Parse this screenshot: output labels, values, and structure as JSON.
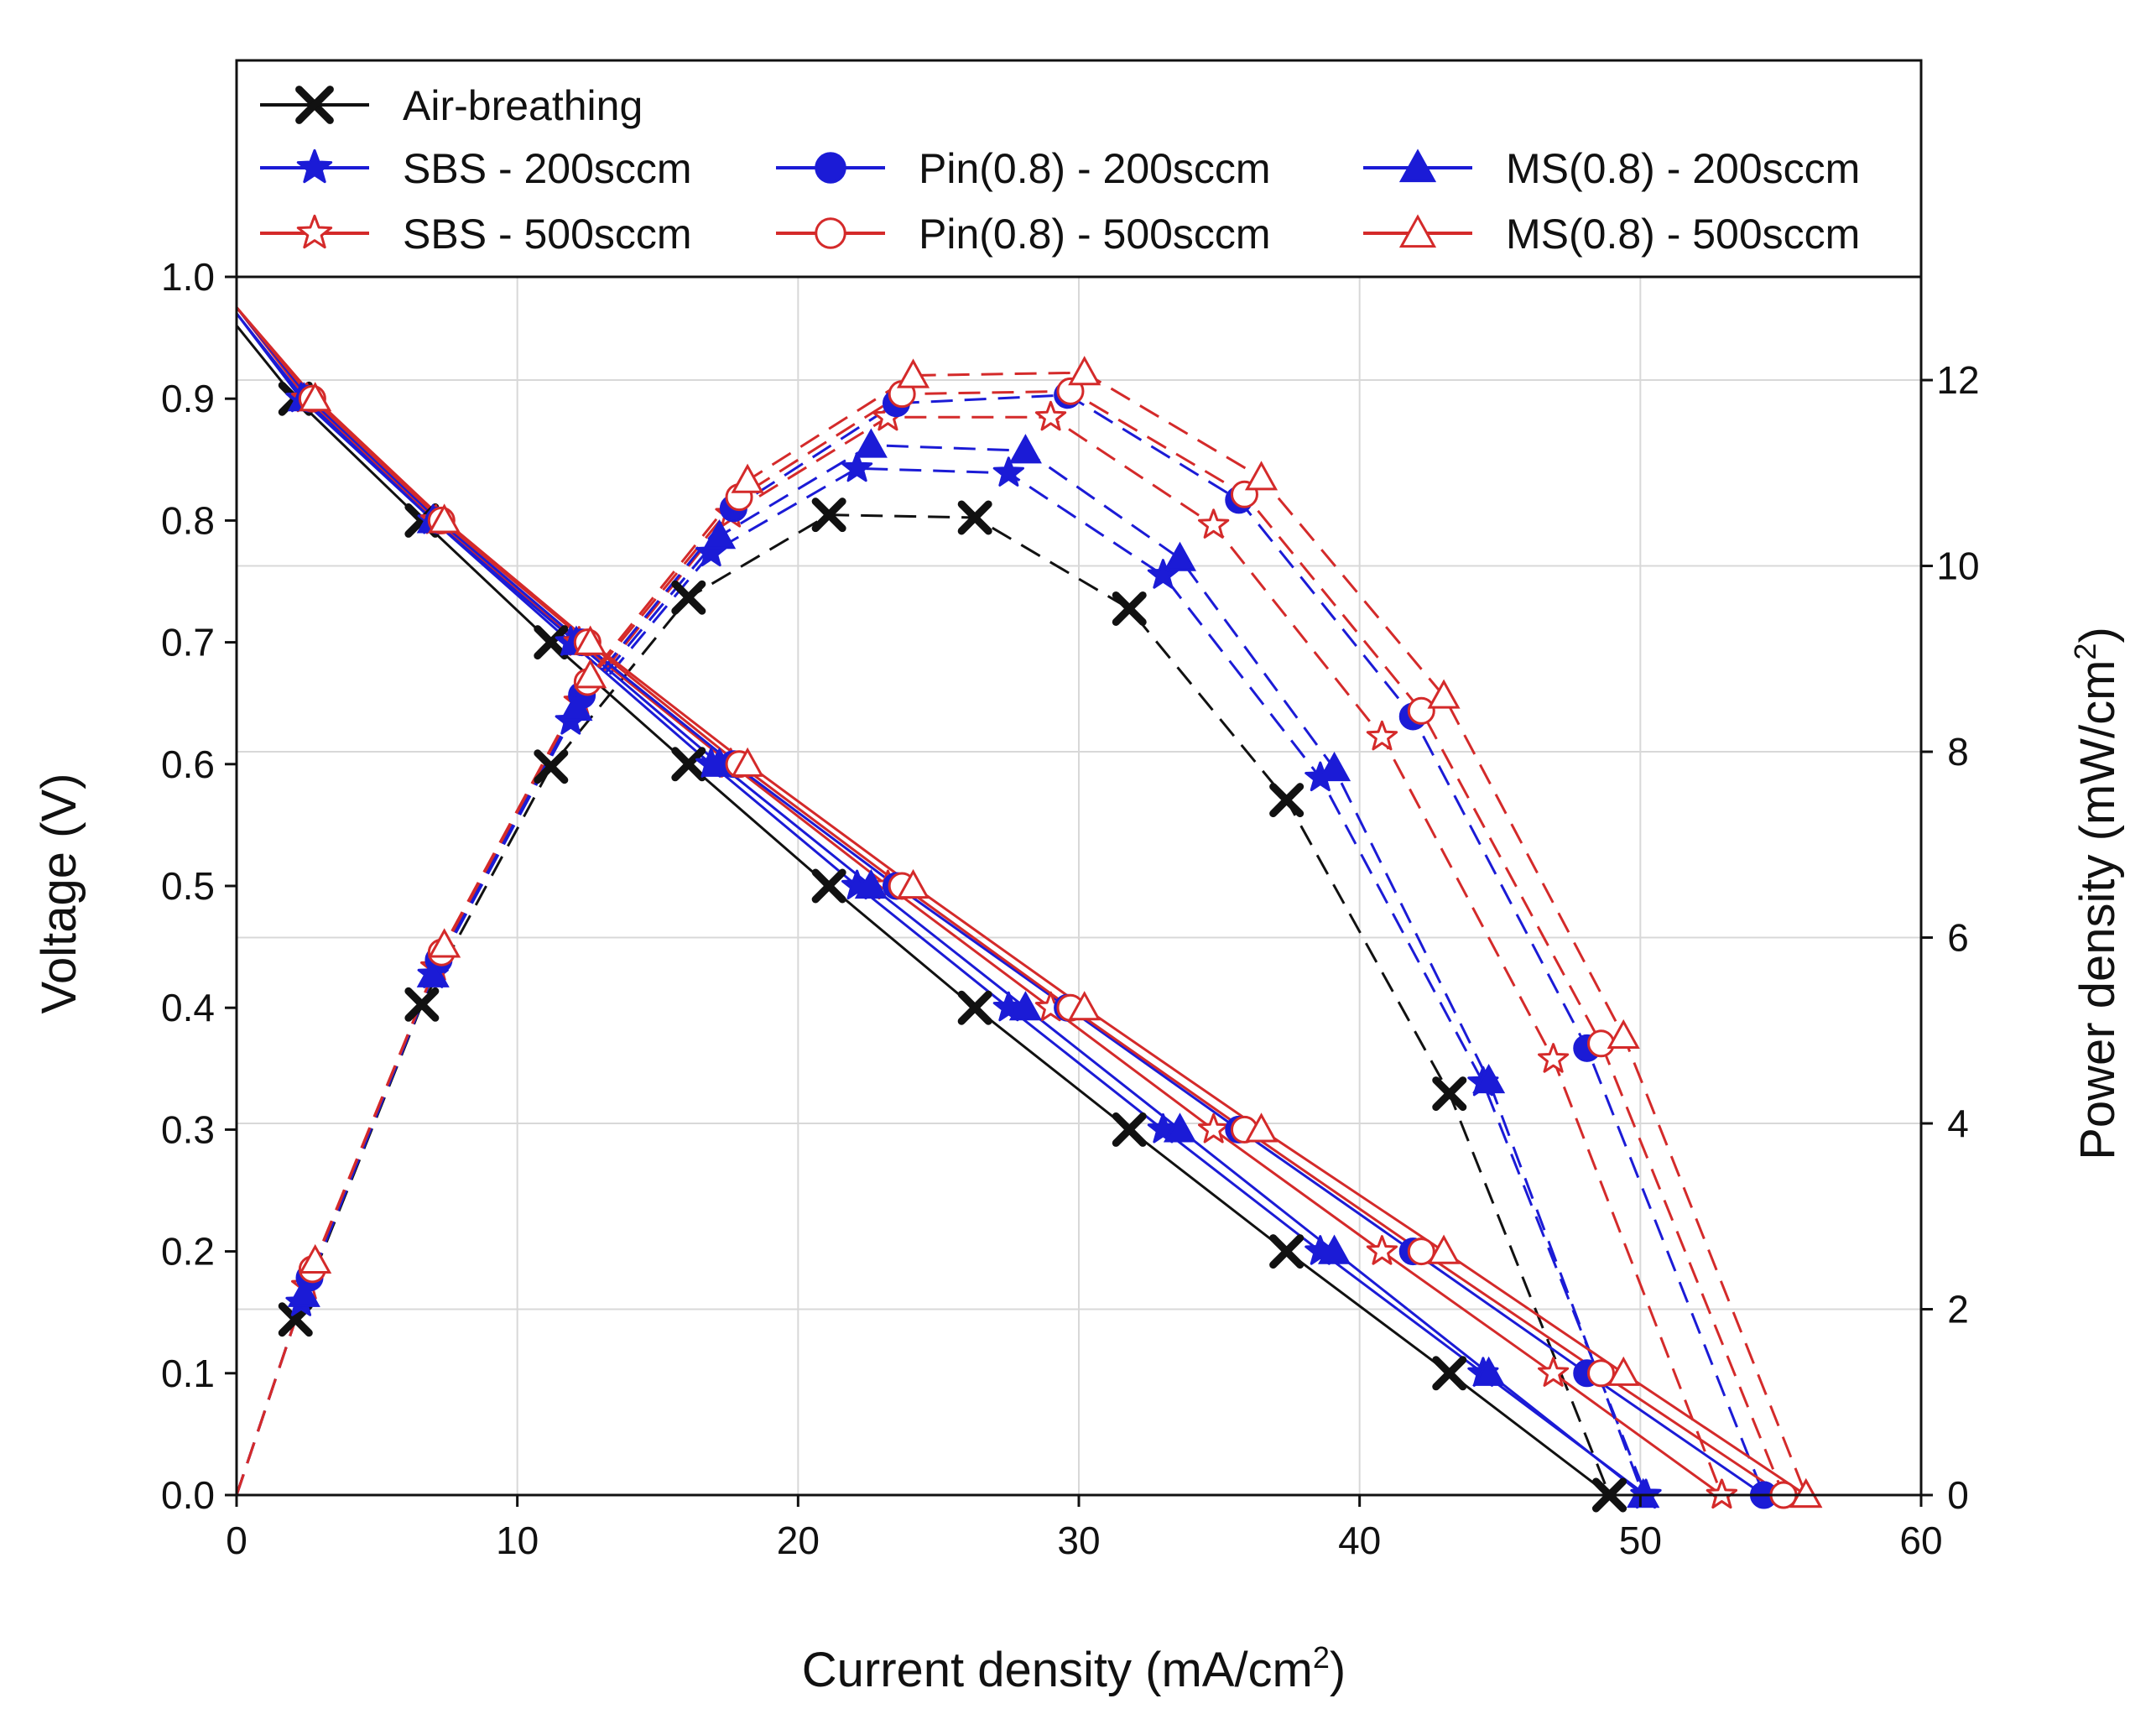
{
  "chart_data": {
    "type": "line",
    "xlabel": "Current density (mA/cm",
    "xlabel_sup": "2",
    "xlabel_end": ")",
    "ylabel": "Voltage (V)",
    "y2label": "Power density (mW/cm",
    "y2label_sup": "2",
    "y2label_end": ")",
    "xlim": [
      0,
      60
    ],
    "ylim": [
      0,
      1.0
    ],
    "y2lim": [
      0,
      13
    ],
    "x_ticks": [
      "0",
      "10",
      "20",
      "30",
      "40",
      "50",
      "60"
    ],
    "y_ticks": [
      "0.0",
      "0.1",
      "0.2",
      "0.3",
      "0.4",
      "0.5",
      "0.6",
      "0.7",
      "0.8",
      "0.9",
      "1.0"
    ],
    "y2_ticks": [
      "0",
      "2",
      "4",
      "6",
      "8",
      "10",
      "12"
    ],
    "grid": true,
    "legend_position": "top",
    "voltage_levels": [
      0.9,
      0.8,
      0.7,
      0.6,
      0.5,
      0.4,
      0.3,
      0.2,
      0.1,
      0.0
    ],
    "series": [
      {
        "name": "Air-breathing",
        "color": "#111111",
        "marker": "x",
        "filled": true,
        "ocv": 0.96,
        "current": [
          2.1,
          6.6,
          11.2,
          16.1,
          21.1,
          26.3,
          31.8,
          37.4,
          43.2,
          48.9
        ]
      },
      {
        "name": "SBS - 200sccm",
        "color": "#1b1bd6",
        "marker": "star",
        "filled": true,
        "ocv": 0.97,
        "current": [
          2.3,
          7.0,
          11.9,
          16.9,
          22.1,
          27.5,
          33.0,
          38.6,
          44.4,
          50.2
        ]
      },
      {
        "name": "SBS - 500sccm",
        "color": "#d42a2a",
        "marker": "star",
        "filled": false,
        "ocv": 0.975,
        "current": [
          2.5,
          7.1,
          12.2,
          17.6,
          23.2,
          29.0,
          34.8,
          40.8,
          46.9,
          52.9
        ]
      },
      {
        "name": "Pin(0.8) - 200sccm",
        "color": "#1b1bd6",
        "marker": "circle",
        "filled": true,
        "ocv": 0.975,
        "current": [
          2.6,
          7.2,
          12.3,
          17.7,
          23.5,
          29.6,
          35.7,
          41.9,
          48.1,
          54.4
        ]
      },
      {
        "name": "MS(0.8) - 200sccm",
        "color": "#1b1bd6",
        "marker": "triangle",
        "filled": true,
        "ocv": 0.97,
        "current": [
          2.4,
          7.0,
          12.1,
          17.2,
          22.6,
          28.1,
          33.6,
          39.1,
          44.6,
          50.1
        ]
      },
      {
        "name": "Pin(0.8) - 500sccm",
        "color": "#d42a2a",
        "marker": "circle",
        "filled": false,
        "ocv": 0.975,
        "current": [
          2.7,
          7.3,
          12.5,
          17.9,
          23.7,
          29.7,
          35.9,
          42.2,
          48.6,
          55.1
        ]
      },
      {
        "name": "MS(0.8) - 500sccm",
        "color": "#d42a2a",
        "marker": "triangle",
        "filled": false,
        "ocv": 0.975,
        "current": [
          2.8,
          7.4,
          12.6,
          18.2,
          24.1,
          30.2,
          36.5,
          43.0,
          49.4,
          55.9
        ]
      }
    ],
    "legend_rows": [
      [
        "Air-breathing"
      ],
      [
        "SBS - 200sccm",
        "Pin(0.8) - 200sccm",
        "MS(0.8) - 200sccm"
      ],
      [
        "SBS - 500sccm",
        "Pin(0.8) - 500sccm",
        "MS(0.8) - 500sccm"
      ]
    ]
  }
}
